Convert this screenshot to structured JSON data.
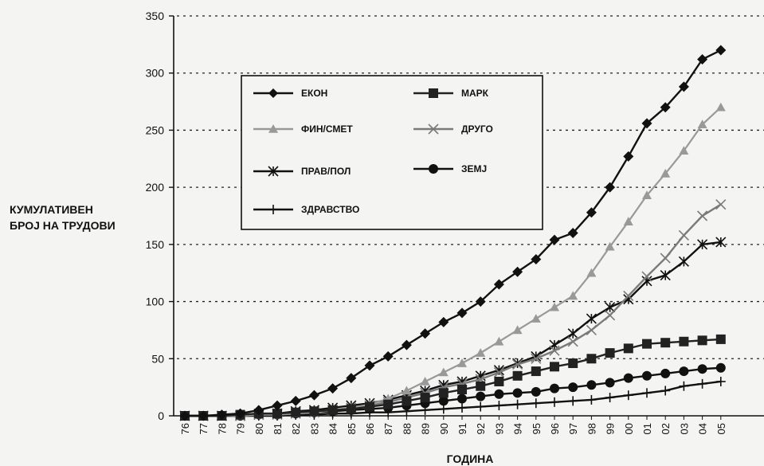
{
  "background_text": [],
  "chart_data": {
    "type": "line",
    "ylabel_lines": [
      "КУМУЛАТИВЕН",
      "БРОЈ НА ТРУДОВИ"
    ],
    "xlabel": "ГОДИНА",
    "ylim": [
      0,
      350
    ],
    "yticks": [
      0,
      50,
      100,
      150,
      200,
      250,
      300,
      350
    ],
    "grid": "horizontal dotted",
    "legend_position": "top-left",
    "x": [
      "76",
      "77",
      "78",
      "79",
      "80",
      "81",
      "82",
      "83",
      "84",
      "85",
      "86",
      "87",
      "88",
      "89",
      "90",
      "91",
      "92",
      "93",
      "94",
      "95",
      "96",
      "97",
      "98",
      "99",
      "00",
      "01",
      "02",
      "03",
      "04",
      "05"
    ],
    "series": [
      {
        "name": "ЕКОН",
        "color": "#111111",
        "marker": "diamond",
        "values": [
          0,
          0,
          1,
          2,
          5,
          9,
          13,
          18,
          24,
          33,
          44,
          52,
          62,
          72,
          82,
          90,
          100,
          115,
          126,
          137,
          154,
          160,
          178,
          200,
          227,
          256,
          270,
          288,
          312,
          320
        ]
      },
      {
        "name": "МАРК",
        "color": "#222222",
        "marker": "square",
        "values": [
          0,
          0,
          0,
          1,
          2,
          2,
          3,
          4,
          5,
          6,
          8,
          10,
          13,
          16,
          20,
          23,
          26,
          30,
          35,
          39,
          43,
          46,
          50,
          55,
          59,
          63,
          64,
          65,
          66,
          67
        ]
      },
      {
        "name": "ФИН/СМЕТ",
        "color": "#999999",
        "marker": "triangle",
        "values": [
          0,
          0,
          0,
          0,
          1,
          1,
          2,
          3,
          5,
          7,
          10,
          15,
          22,
          30,
          38,
          46,
          55,
          65,
          75,
          85,
          95,
          105,
          125,
          148,
          170,
          193,
          212,
          232,
          255,
          270
        ]
      },
      {
        "name": "ДРУГО",
        "color": "#7a7a7a",
        "marker": "xstar",
        "values": [
          0,
          0,
          0,
          0,
          1,
          1,
          2,
          3,
          5,
          7,
          9,
          12,
          16,
          20,
          25,
          28,
          32,
          38,
          45,
          50,
          57,
          65,
          75,
          88,
          105,
          122,
          138,
          158,
          175,
          185
        ]
      },
      {
        "name": "ПРАВ/ПОЛ",
        "color": "#111111",
        "marker": "asterisk",
        "values": [
          0,
          0,
          0,
          0,
          1,
          2,
          4,
          5,
          7,
          9,
          11,
          14,
          18,
          22,
          27,
          30,
          35,
          40,
          46,
          52,
          62,
          72,
          85,
          95,
          102,
          118,
          123,
          135,
          150,
          152
        ]
      },
      {
        "name": "ЗЕМЈ",
        "color": "#111111",
        "marker": "circle",
        "values": [
          0,
          0,
          0,
          0,
          1,
          1,
          2,
          3,
          4,
          5,
          6,
          7,
          9,
          11,
          13,
          15,
          17,
          19,
          20,
          21,
          24,
          25,
          27,
          29,
          33,
          35,
          37,
          39,
          41,
          42
        ]
      },
      {
        "name": "ЗДРАВСТВО",
        "color": "#111111",
        "marker": "plus",
        "values": [
          0,
          0,
          0,
          0,
          0,
          0,
          1,
          1,
          2,
          2,
          3,
          3,
          4,
          5,
          6,
          7,
          8,
          9,
          10,
          11,
          12,
          13,
          14,
          16,
          18,
          20,
          22,
          26,
          28,
          30
        ]
      }
    ]
  }
}
